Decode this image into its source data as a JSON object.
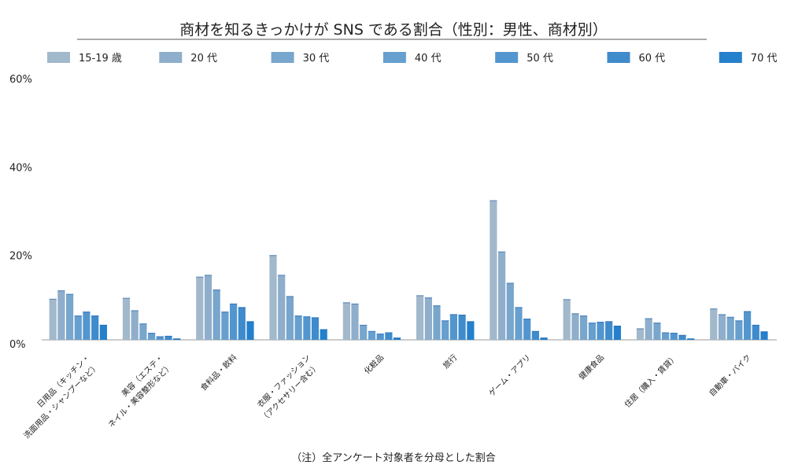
{
  "chart_data": {
    "type": "bar",
    "title": "商材を知るきっかけが SNS である割合（性別：男性、商材別）",
    "footnote": "（注）全アンケート対象者を分母とした割合",
    "xlabel": "",
    "ylabel": "",
    "ylim": [
      0,
      60
    ],
    "yticks": [
      "0%",
      "20%",
      "40%",
      "60%"
    ],
    "ytick_values": [
      0,
      20,
      40,
      60
    ],
    "grid": false,
    "legend_position": "top",
    "categories": [
      [
        "日用品（キッチン・",
        "洗面用品・シャンプーなど）"
      ],
      [
        "美容（エステ・",
        "ネイル・美容整形など）"
      ],
      [
        "食料品・飲料"
      ],
      [
        "衣服・ファッション",
        "（アクセサリー含む）"
      ],
      [
        "化粧品"
      ],
      [
        "旅行"
      ],
      [
        "ゲーム・アプリ"
      ],
      [
        "健康食品"
      ],
      [
        "住居（購入・賃貸）"
      ],
      [
        "自動車・バイク"
      ]
    ],
    "series": [
      {
        "name": "15-19 歳",
        "color": "#a2b8cb",
        "values": [
          9.3,
          9.5,
          14.3,
          19.2,
          8.5,
          10.1,
          31.6,
          9.2,
          2.6,
          7.1
        ]
      },
      {
        "name": "20 代",
        "color": "#8eaecb",
        "values": [
          11.2,
          6.7,
          14.7,
          14.7,
          8.2,
          9.6,
          20.0,
          6.0,
          4.9,
          5.8
        ]
      },
      {
        "name": "30 代",
        "color": "#78a6cc",
        "values": [
          10.4,
          3.7,
          11.4,
          9.9,
          3.4,
          7.8,
          12.9,
          5.5,
          3.9,
          5.2
        ]
      },
      {
        "name": "40 代",
        "color": "#679fcf",
        "values": [
          5.5,
          1.6,
          6.4,
          5.5,
          2.0,
          4.4,
          7.4,
          3.9,
          1.7,
          4.4
        ]
      },
      {
        "name": "50 代",
        "color": "#5396cf",
        "values": [
          6.4,
          0.8,
          8.2,
          5.3,
          1.4,
          5.8,
          4.8,
          4.1,
          1.6,
          6.5
        ]
      },
      {
        "name": "60 代",
        "color": "#3f8bcc",
        "values": [
          5.5,
          0.9,
          7.4,
          5.1,
          1.7,
          5.7,
          2.0,
          4.2,
          1.1,
          3.4
        ]
      },
      {
        "name": "70 代",
        "color": "#2480cc",
        "values": [
          3.4,
          0.3,
          4.2,
          2.4,
          0.5,
          4.2,
          0.5,
          3.2,
          0.3,
          1.9
        ]
      }
    ]
  }
}
